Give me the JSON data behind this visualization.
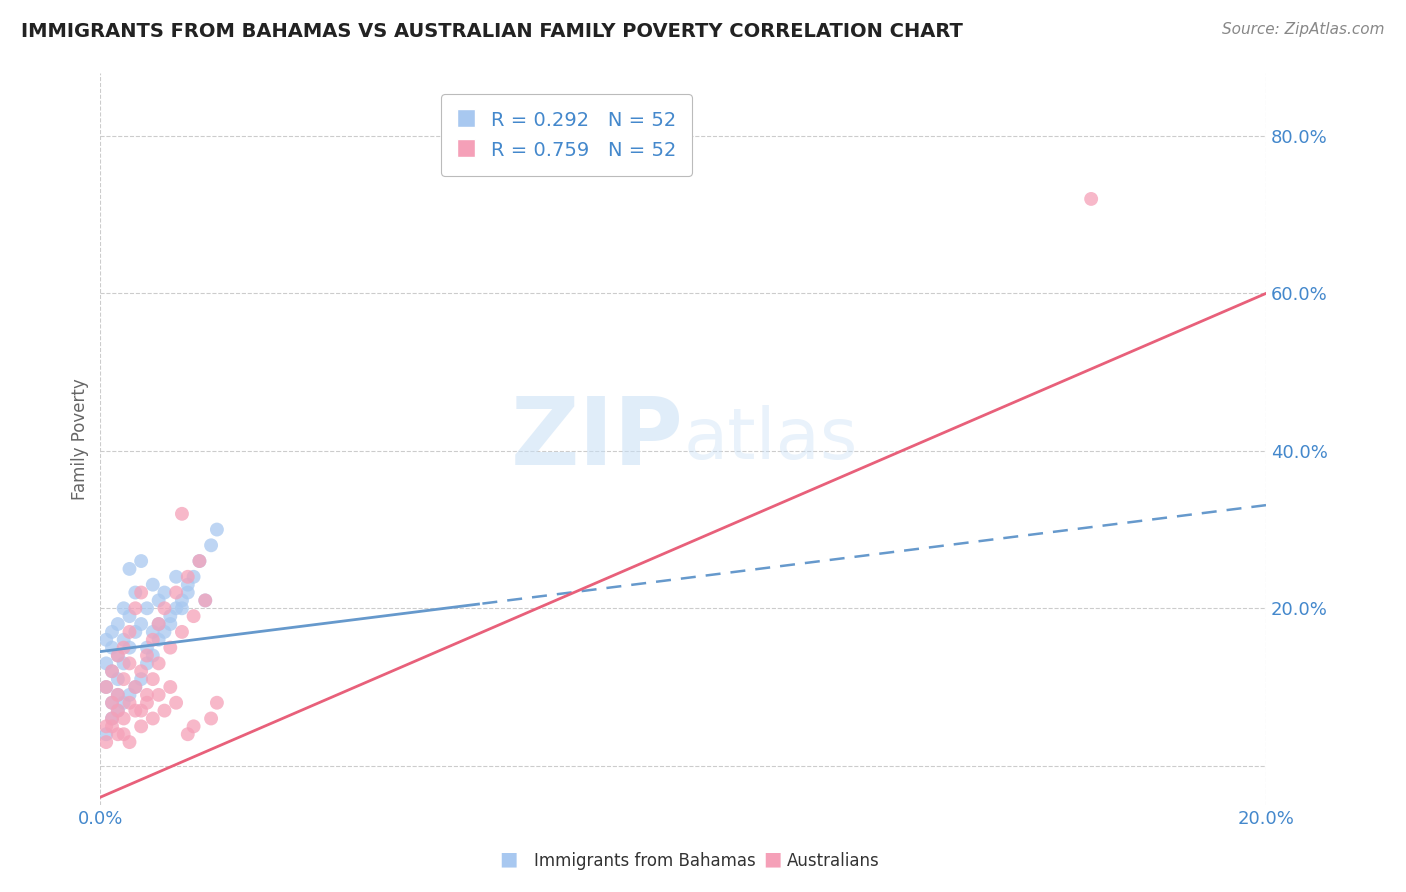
{
  "title": "IMMIGRANTS FROM BAHAMAS VS AUSTRALIAN FAMILY POVERTY CORRELATION CHART",
  "source": "Source: ZipAtlas.com",
  "ylabel": "Family Poverty",
  "legend_labels": [
    "Immigrants from Bahamas",
    "Australians"
  ],
  "R_bahamas": 0.292,
  "N_bahamas": 52,
  "R_australia": 0.759,
  "N_australia": 52,
  "xlim": [
    0.0,
    0.2
  ],
  "ylim": [
    -0.05,
    0.88
  ],
  "ytick_vals": [
    0.0,
    0.2,
    0.4,
    0.6,
    0.8
  ],
  "ytick_labels": [
    "",
    "20.0%",
    "40.0%",
    "60.0%",
    "80.0%"
  ],
  "xtick_vals": [
    0.0,
    0.2
  ],
  "xtick_labels": [
    "0.0%",
    "20.0%"
  ],
  "color_bahamas": "#a8c8f0",
  "color_australia": "#f5a0b8",
  "line_color_bahamas": "#6699cc",
  "line_color_australia": "#e8607a",
  "title_color": "#222222",
  "axis_label_color": "#4488cc",
  "tick_label_color": "#4488cc",
  "watermark_color": "#ddeeff",
  "grid_color": "#cccccc",
  "bah_line_intercept": 0.145,
  "bah_line_slope": 0.93,
  "aus_line_intercept": -0.04,
  "aus_line_slope": 3.2,
  "bah_points_x": [
    0.001,
    0.001,
    0.001,
    0.002,
    0.002,
    0.002,
    0.002,
    0.003,
    0.003,
    0.003,
    0.003,
    0.004,
    0.004,
    0.004,
    0.005,
    0.005,
    0.005,
    0.006,
    0.006,
    0.007,
    0.007,
    0.008,
    0.008,
    0.009,
    0.009,
    0.01,
    0.01,
    0.011,
    0.012,
    0.013,
    0.014,
    0.015,
    0.016,
    0.017,
    0.018,
    0.019,
    0.02,
    0.001,
    0.002,
    0.003,
    0.004,
    0.005,
    0.006,
    0.007,
    0.008,
    0.009,
    0.01,
    0.011,
    0.012,
    0.013,
    0.014,
    0.015
  ],
  "bah_points_y": [
    0.1,
    0.13,
    0.16,
    0.12,
    0.15,
    0.08,
    0.17,
    0.11,
    0.14,
    0.09,
    0.18,
    0.13,
    0.16,
    0.2,
    0.15,
    0.19,
    0.25,
    0.17,
    0.22,
    0.18,
    0.26,
    0.2,
    0.15,
    0.23,
    0.17,
    0.21,
    0.18,
    0.22,
    0.19,
    0.24,
    0.2,
    0.22,
    0.24,
    0.26,
    0.21,
    0.28,
    0.3,
    0.04,
    0.06,
    0.07,
    0.08,
    0.09,
    0.1,
    0.11,
    0.13,
    0.14,
    0.16,
    0.17,
    0.18,
    0.2,
    0.21,
    0.23
  ],
  "aus_points_x": [
    0.001,
    0.001,
    0.002,
    0.002,
    0.002,
    0.003,
    0.003,
    0.003,
    0.004,
    0.004,
    0.004,
    0.005,
    0.005,
    0.005,
    0.006,
    0.006,
    0.007,
    0.007,
    0.007,
    0.008,
    0.008,
    0.009,
    0.009,
    0.01,
    0.01,
    0.011,
    0.012,
    0.013,
    0.014,
    0.015,
    0.016,
    0.017,
    0.018,
    0.019,
    0.02,
    0.001,
    0.002,
    0.003,
    0.004,
    0.005,
    0.006,
    0.007,
    0.008,
    0.009,
    0.01,
    0.011,
    0.012,
    0.013,
    0.014,
    0.015,
    0.016,
    0.17
  ],
  "aus_points_y": [
    0.05,
    0.1,
    0.08,
    0.12,
    0.06,
    0.09,
    0.14,
    0.07,
    0.11,
    0.15,
    0.04,
    0.13,
    0.08,
    0.17,
    0.1,
    0.2,
    0.12,
    0.07,
    0.22,
    0.14,
    0.09,
    0.16,
    0.11,
    0.18,
    0.13,
    0.2,
    0.15,
    0.22,
    0.17,
    0.24,
    0.19,
    0.26,
    0.21,
    0.06,
    0.08,
    0.03,
    0.05,
    0.04,
    0.06,
    0.03,
    0.07,
    0.05,
    0.08,
    0.06,
    0.09,
    0.07,
    0.1,
    0.08,
    0.32,
    0.04,
    0.05,
    0.72
  ]
}
